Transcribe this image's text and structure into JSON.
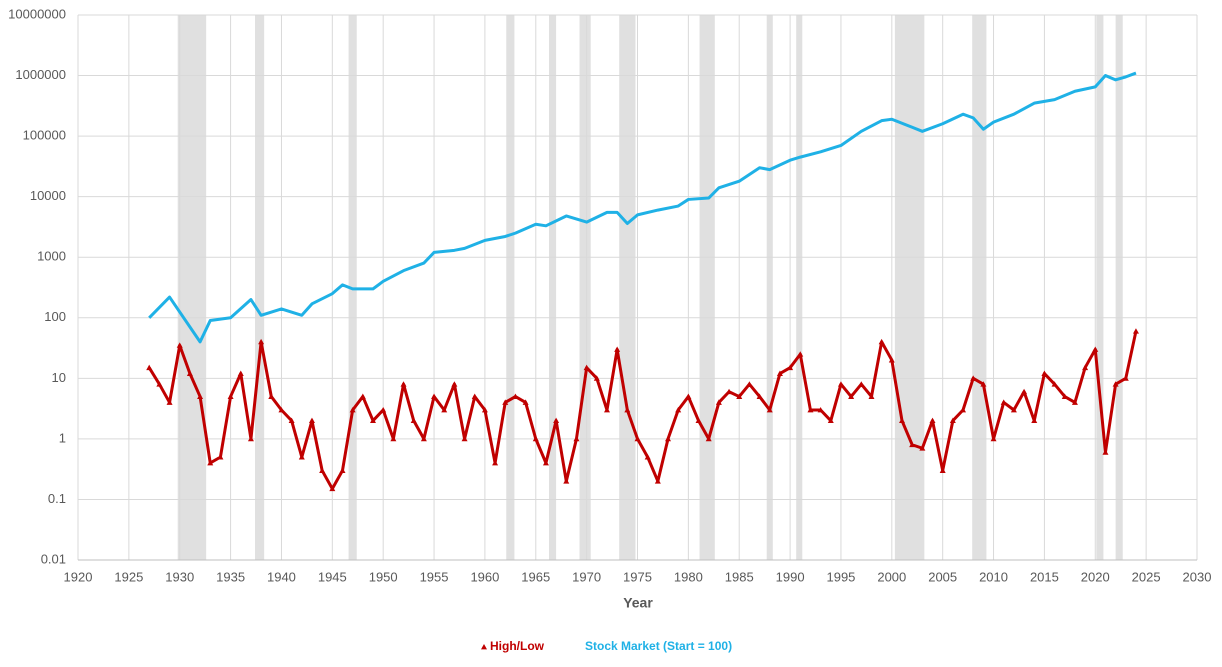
{
  "chart_data": {
    "type": "line",
    "xlabel": "Year",
    "xlim": [
      1920,
      2030
    ],
    "xticks": [
      1920,
      1925,
      1930,
      1935,
      1940,
      1945,
      1950,
      1955,
      1960,
      1965,
      1970,
      1975,
      1980,
      1985,
      1990,
      1995,
      2000,
      2005,
      2010,
      2015,
      2020,
      2025,
      2030
    ],
    "ylim": [
      0.01,
      10000000
    ],
    "yticks": [
      0.01,
      0.1,
      1,
      10,
      100,
      1000,
      10000,
      100000,
      1000000,
      10000000
    ],
    "log_y": true,
    "grid": true,
    "legend": "bottom",
    "shaded_periods": [
      [
        1929.8,
        1932.6
      ],
      [
        1937.4,
        1938.3
      ],
      [
        1946.6,
        1947.4
      ],
      [
        1962.1,
        1962.9
      ],
      [
        1966.3,
        1967.0
      ],
      [
        1969.3,
        1970.4
      ],
      [
        1973.2,
        1974.8
      ],
      [
        1981.1,
        1982.6
      ],
      [
        1987.7,
        1988.3
      ],
      [
        1990.6,
        1991.2
      ],
      [
        2000.3,
        2003.2
      ],
      [
        2007.9,
        2009.3
      ],
      [
        2020.1,
        2020.8
      ],
      [
        2022.0,
        2022.7
      ]
    ],
    "series": [
      {
        "name": "High/Low",
        "color": "#c00000",
        "marker": "triangle",
        "x": [
          1927,
          1928,
          1929,
          1930,
          1931,
          1932,
          1933,
          1934,
          1935,
          1936,
          1937,
          1938,
          1939,
          1940,
          1941,
          1942,
          1943,
          1944,
          1945,
          1946,
          1947,
          1948,
          1949,
          1950,
          1951,
          1952,
          1953,
          1954,
          1955,
          1956,
          1957,
          1958,
          1959,
          1960,
          1961,
          1962,
          1963,
          1964,
          1965,
          1966,
          1967,
          1968,
          1969,
          1970,
          1971,
          1972,
          1973,
          1974,
          1975,
          1976,
          1977,
          1978,
          1979,
          1980,
          1981,
          1982,
          1983,
          1984,
          1985,
          1986,
          1987,
          1988,
          1989,
          1990,
          1991,
          1992,
          1993,
          1994,
          1995,
          1996,
          1997,
          1998,
          1999,
          2000,
          2001,
          2002,
          2003,
          2004,
          2005,
          2006,
          2007,
          2008,
          2009,
          2010,
          2011,
          2012,
          2013,
          2014,
          2015,
          2016,
          2017,
          2018,
          2019,
          2020,
          2021,
          2022,
          2023,
          2024
        ],
        "values": [
          15,
          8,
          4,
          35,
          12,
          5,
          0.4,
          0.5,
          5,
          12,
          1,
          40,
          5,
          3,
          2,
          0.5,
          2,
          0.3,
          0.15,
          0.3,
          3,
          5,
          2,
          3,
          1,
          8,
          2,
          1,
          5,
          3,
          8,
          1,
          5,
          3,
          0.4,
          4,
          5,
          4,
          1,
          0.4,
          2,
          0.2,
          1,
          15,
          10,
          3,
          30,
          3,
          1,
          0.5,
          0.2,
          1,
          3,
          5,
          2,
          1,
          4,
          6,
          5,
          8,
          5,
          3,
          12,
          15,
          25,
          3,
          3,
          2,
          8,
          5,
          8,
          5,
          40,
          20,
          2,
          0.8,
          0.7,
          2,
          0.3,
          2,
          3,
          10,
          8,
          1,
          4,
          3,
          6,
          2,
          12,
          8,
          5,
          4,
          15,
          30,
          0.6,
          8,
          10,
          60
        ]
      },
      {
        "name": "Stock Market (Start = 100)",
        "color": "#1fb1e6",
        "x": [
          1927,
          1929,
          1932,
          1933,
          1935,
          1937,
          1938,
          1940,
          1942,
          1943,
          1945,
          1946,
          1947,
          1949,
          1950,
          1952,
          1954,
          1955,
          1957,
          1958,
          1960,
          1962,
          1963,
          1965,
          1966,
          1968,
          1970,
          1972,
          1973,
          1974,
          1975,
          1977,
          1979,
          1980,
          1982,
          1983,
          1985,
          1987,
          1988,
          1990,
          1991,
          1993,
          1995,
          1997,
          1999,
          2000,
          2002,
          2003,
          2005,
          2007,
          2008,
          2009,
          2010,
          2012,
          2014,
          2016,
          2018,
          2020,
          2021,
          2022,
          2023,
          2024
        ],
        "values": [
          100,
          220,
          40,
          90,
          100,
          200,
          110,
          140,
          110,
          170,
          250,
          350,
          300,
          300,
          400,
          600,
          800,
          1200,
          1300,
          1400,
          1900,
          2200,
          2500,
          3500,
          3300,
          4800,
          3800,
          5500,
          5500,
          3600,
          5000,
          6000,
          7000,
          9000,
          9500,
          14000,
          18000,
          30000,
          28000,
          40000,
          45000,
          55000,
          70000,
          120000,
          180000,
          190000,
          140000,
          120000,
          160000,
          230000,
          200000,
          130000,
          170000,
          230000,
          350000,
          400000,
          550000,
          650000,
          1000000,
          850000,
          950000,
          1100000
        ]
      }
    ]
  }
}
